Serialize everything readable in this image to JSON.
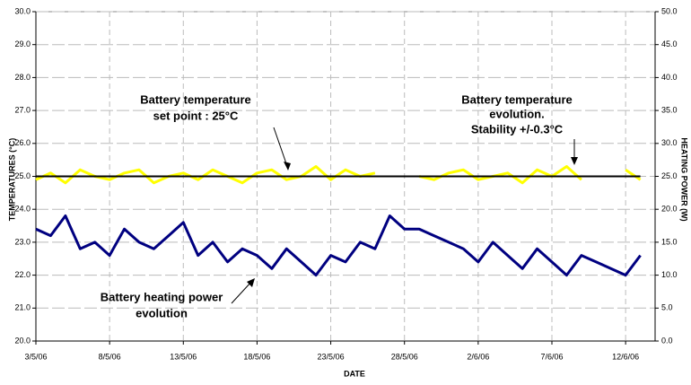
{
  "chart_data": {
    "type": "line",
    "xlabel": "DATE",
    "ylabel": "TEMPERATURES (°C)",
    "y2label": "HEATING POWER (W)",
    "x": [
      "2006-05-03",
      "2006-05-04",
      "2006-05-05",
      "2006-05-06",
      "2006-05-07",
      "2006-05-08",
      "2006-05-09",
      "2006-05-10",
      "2006-05-11",
      "2006-05-12",
      "2006-05-13",
      "2006-05-14",
      "2006-05-15",
      "2006-05-16",
      "2006-05-17",
      "2006-05-18",
      "2006-05-19",
      "2006-05-20",
      "2006-05-21",
      "2006-05-22",
      "2006-05-23",
      "2006-05-24",
      "2006-05-25",
      "2006-05-26",
      "2006-05-27",
      "2006-05-28",
      "2006-05-29",
      "2006-05-30",
      "2006-05-31",
      "2006-06-01",
      "2006-06-02",
      "2006-06-03",
      "2006-06-04",
      "2006-06-05",
      "2006-06-06",
      "2006-06-07",
      "2006-06-08",
      "2006-06-09",
      "2006-06-10",
      "2006-06-11",
      "2006-06-12",
      "2006-06-13"
    ],
    "series": [
      {
        "name": "Battery temperature",
        "color": "#ffff00",
        "values": [
          24.9,
          25.1,
          24.8,
          25.2,
          25.0,
          24.9,
          25.1,
          25.2,
          24.8,
          25.0,
          25.1,
          24.9,
          25.2,
          25.0,
          24.8,
          25.1,
          25.2,
          24.9,
          25.0,
          25.3,
          24.9,
          25.2,
          25.0,
          25.1,
          null,
          null,
          25.0,
          24.9,
          25.1,
          25.2,
          24.9,
          25.0,
          25.1,
          24.8,
          25.2,
          25.0,
          25.3,
          24.9,
          null,
          null,
          25.2,
          24.9
        ]
      },
      {
        "name": "Battery temperature set point",
        "color": "#000000",
        "values": [
          25,
          25,
          25,
          25,
          25,
          25,
          25,
          25,
          25,
          25,
          25,
          25,
          25,
          25,
          25,
          25,
          25,
          25,
          25,
          25,
          25,
          25,
          25,
          25,
          25,
          25,
          25,
          25,
          25,
          25,
          25,
          25,
          25,
          25,
          25,
          25,
          25,
          25,
          25,
          25,
          25,
          25
        ]
      },
      {
        "name": "Battery heating power",
        "color": "#000080",
        "axis": "y2",
        "values": [
          17,
          16,
          19,
          14,
          15,
          13,
          17,
          15,
          14,
          16,
          18,
          13,
          15,
          12,
          14,
          13,
          11,
          14,
          12,
          10,
          13,
          12,
          15,
          14,
          19,
          17,
          17,
          16,
          15,
          14,
          12,
          15,
          13,
          11,
          14,
          12,
          10,
          13,
          12,
          11,
          10,
          13
        ]
      }
    ],
    "xlim": [
      "2006-05-03",
      "2006-06-14"
    ],
    "xticks": [
      {
        "value": "2006-05-03",
        "label": "3/5/06"
      },
      {
        "value": "2006-05-08",
        "label": "8/5/06"
      },
      {
        "value": "2006-05-13",
        "label": "13/5/06"
      },
      {
        "value": "2006-05-18",
        "label": "18/5/06"
      },
      {
        "value": "2006-05-23",
        "label": "23/5/06"
      },
      {
        "value": "2006-05-28",
        "label": "28/5/06"
      },
      {
        "value": "2006-06-02",
        "label": "2/6/06"
      },
      {
        "value": "2006-06-07",
        "label": "7/6/06"
      },
      {
        "value": "2006-06-12",
        "label": "12/6/06"
      }
    ],
    "ylim": [
      20,
      30
    ],
    "yticks": [
      {
        "value": 20,
        "label": "20.0"
      },
      {
        "value": 21,
        "label": "21.0"
      },
      {
        "value": 22,
        "label": "22.0"
      },
      {
        "value": 23,
        "label": "23.0"
      },
      {
        "value": 24,
        "label": "24.0"
      },
      {
        "value": 25,
        "label": "25.0"
      },
      {
        "value": 26,
        "label": "26.0"
      },
      {
        "value": 27,
        "label": "27.0"
      },
      {
        "value": 28,
        "label": "28.0"
      },
      {
        "value": 29,
        "label": "29.0"
      },
      {
        "value": 30,
        "label": "30.0"
      }
    ],
    "y2lim": [
      0,
      50
    ],
    "y2ticks": [
      {
        "value": 0,
        "label": "0.0"
      },
      {
        "value": 5,
        "label": "5.0"
      },
      {
        "value": 10,
        "label": "10.0"
      },
      {
        "value": 15,
        "label": "15.0"
      },
      {
        "value": 20,
        "label": "20.0"
      },
      {
        "value": 25,
        "label": "25.0"
      },
      {
        "value": 30,
        "label": "30.0"
      },
      {
        "value": 35,
        "label": "35.0"
      },
      {
        "value": 40,
        "label": "40.0"
      },
      {
        "value": 45,
        "label": "45.0"
      },
      {
        "value": 50,
        "label": "50.0"
      }
    ],
    "grid": true,
    "annotations": [
      {
        "text": [
          "Battery temperature",
          "set point : 25°C"
        ]
      },
      {
        "text": [
          "Battery temperature",
          "evolution.",
          "Stability +/-0.3°C"
        ]
      },
      {
        "text": [
          "Battery heating power",
          "evolution"
        ]
      }
    ]
  }
}
